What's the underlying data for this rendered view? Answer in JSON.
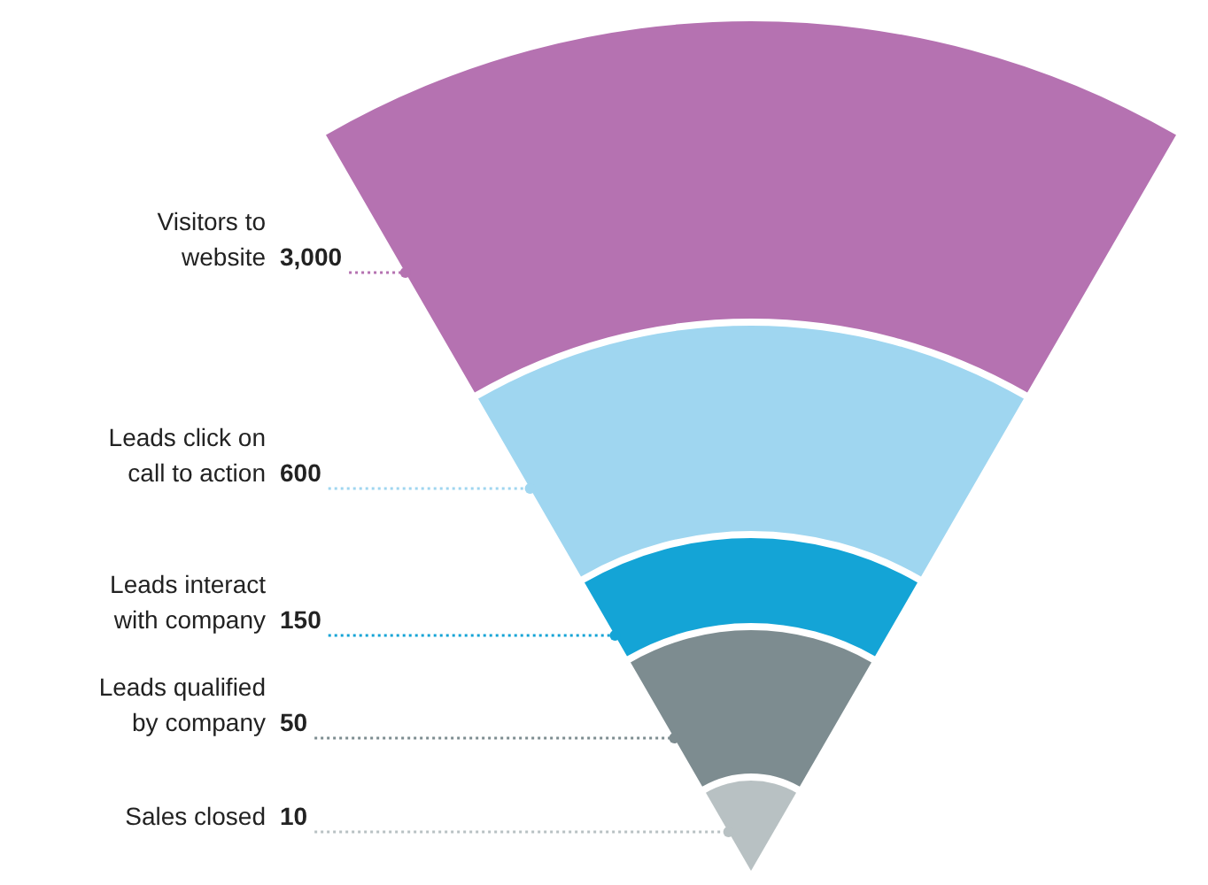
{
  "chart_data": {
    "type": "other",
    "categories": [
      "Visitors to website",
      "Leads click on call to action",
      "Leads interact with company",
      "Leads qualified by company",
      "Sales closed"
    ],
    "values": [
      3000,
      600,
      150,
      50,
      10
    ],
    "value_labels": [
      "3,000",
      "600",
      "150",
      "50",
      "10"
    ],
    "colors": [
      "#b572b1",
      "#9fd6f0",
      "#14a4d6",
      "#7d8c90",
      "#b8c1c3"
    ]
  }
}
